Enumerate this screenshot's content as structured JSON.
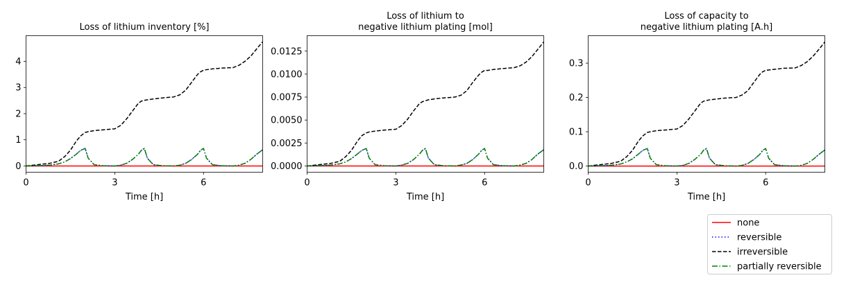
{
  "chart_data": [
    {
      "type": "line",
      "title": [
        "Loss of lithium inventory [%]"
      ],
      "xlabel": "Time [h]",
      "ylabel": "",
      "xlim": [
        0,
        8
      ],
      "ylim": [
        -0.24,
        4.98
      ],
      "xticks": [
        0,
        3,
        6
      ],
      "xtick_labels": [
        "0",
        "3",
        "6"
      ],
      "yticks": [
        0,
        1,
        2,
        3,
        4
      ],
      "ytick_labels": [
        "0",
        "1",
        "2",
        "3",
        "4"
      ],
      "x": [
        0,
        0.4,
        0.8,
        1.1,
        1.3,
        1.5,
        1.7,
        1.85,
        2.0,
        2.1,
        2.3,
        2.6,
        3.0,
        3.2,
        3.4,
        3.6,
        3.8,
        3.9,
        4.0,
        4.1,
        4.3,
        4.6,
        5.0,
        5.2,
        5.4,
        5.6,
        5.8,
        5.9,
        6.0,
        6.1,
        6.3,
        6.6,
        7.0,
        7.2,
        7.4,
        7.6,
        7.8,
        8.0
      ],
      "series": [
        {
          "name": "none",
          "values": [
            0,
            0,
            0,
            0,
            0,
            0,
            0,
            0,
            0,
            0,
            0,
            0,
            0,
            0,
            0,
            0,
            0,
            0,
            0,
            0,
            0,
            0,
            0,
            0,
            0,
            0,
            0,
            0,
            0,
            0,
            0,
            0,
            0,
            0,
            0,
            0,
            0,
            0
          ]
        },
        {
          "name": "reversible",
          "values": [
            0,
            0.01,
            0.03,
            0.08,
            0.15,
            0.28,
            0.45,
            0.6,
            0.67,
            0.3,
            0.05,
            0.01,
            0,
            0.03,
            0.1,
            0.25,
            0.45,
            0.6,
            0.67,
            0.3,
            0.05,
            0.01,
            0,
            0.03,
            0.1,
            0.25,
            0.45,
            0.6,
            0.67,
            0.3,
            0.05,
            0.01,
            0,
            0.03,
            0.1,
            0.25,
            0.45,
            0.62
          ]
        },
        {
          "name": "irreversible",
          "values": [
            0,
            0.05,
            0.1,
            0.18,
            0.35,
            0.6,
            0.95,
            1.15,
            1.28,
            1.31,
            1.35,
            1.38,
            1.42,
            1.55,
            1.8,
            2.1,
            2.4,
            2.48,
            2.51,
            2.53,
            2.56,
            2.6,
            2.64,
            2.72,
            2.9,
            3.2,
            3.5,
            3.6,
            3.66,
            3.68,
            3.71,
            3.74,
            3.76,
            3.85,
            4.0,
            4.2,
            4.48,
            4.75
          ]
        },
        {
          "name": "partially reversible",
          "values": [
            0,
            0.01,
            0.03,
            0.08,
            0.15,
            0.28,
            0.45,
            0.6,
            0.67,
            0.3,
            0.05,
            0.01,
            0,
            0.03,
            0.1,
            0.25,
            0.45,
            0.6,
            0.67,
            0.3,
            0.05,
            0.01,
            0,
            0.03,
            0.1,
            0.25,
            0.45,
            0.6,
            0.67,
            0.3,
            0.05,
            0.01,
            0,
            0.03,
            0.1,
            0.25,
            0.45,
            0.62
          ]
        }
      ]
    },
    {
      "type": "line",
      "title": [
        "Loss of lithium to",
        "negative lithium plating [mol]"
      ],
      "xlabel": "Time [h]",
      "ylabel": "",
      "xlim": [
        0,
        8
      ],
      "ylim": [
        -0.00068,
        0.01418
      ],
      "xticks": [
        0,
        3,
        6
      ],
      "xtick_labels": [
        "0",
        "3",
        "6"
      ],
      "yticks": [
        0,
        0.0025,
        0.005,
        0.0075,
        0.01,
        0.0125
      ],
      "ytick_labels": [
        "0.0000",
        "0.0025",
        "0.0050",
        "0.0075",
        "0.0100",
        "0.0125"
      ],
      "x": [
        0,
        0.4,
        0.8,
        1.1,
        1.3,
        1.5,
        1.7,
        1.85,
        2.0,
        2.1,
        2.3,
        2.6,
        3.0,
        3.2,
        3.4,
        3.6,
        3.8,
        3.9,
        4.0,
        4.1,
        4.3,
        4.6,
        5.0,
        5.2,
        5.4,
        5.6,
        5.8,
        5.9,
        6.0,
        6.1,
        6.3,
        6.6,
        7.0,
        7.2,
        7.4,
        7.6,
        7.8,
        8.0
      ],
      "series": [
        {
          "name": "none",
          "values": [
            0,
            0,
            0,
            0,
            0,
            0,
            0,
            0,
            0,
            0,
            0,
            0,
            0,
            0,
            0,
            0,
            0,
            0,
            0,
            0,
            0,
            0,
            0,
            0,
            0,
            0,
            0,
            0,
            0,
            0,
            0,
            0,
            0,
            0,
            0,
            0,
            0,
            0
          ]
        },
        {
          "name": "reversible",
          "values": [
            0,
            3e-05,
            0.0001,
            0.00023,
            0.00043,
            0.0008,
            0.0013,
            0.0017,
            0.0019,
            0.00085,
            0.00014,
            3e-05,
            0,
            0.0001,
            0.00028,
            0.0007,
            0.0013,
            0.0017,
            0.0019,
            0.00085,
            0.00014,
            3e-05,
            0,
            0.0001,
            0.00028,
            0.0007,
            0.0013,
            0.0017,
            0.0019,
            0.00085,
            0.00014,
            3e-05,
            0,
            0.0001,
            0.00028,
            0.0007,
            0.0013,
            0.00176
          ]
        },
        {
          "name": "irreversible",
          "values": [
            0,
            0.00014,
            0.00028,
            0.0005,
            0.001,
            0.0017,
            0.0027,
            0.0033,
            0.0036,
            0.0037,
            0.0038,
            0.0039,
            0.004,
            0.0044,
            0.0051,
            0.006,
            0.0068,
            0.007,
            0.0071,
            0.0072,
            0.0073,
            0.0074,
            0.0075,
            0.0077,
            0.0082,
            0.0091,
            0.0099,
            0.0102,
            0.0104,
            0.0104,
            0.0105,
            0.0106,
            0.0107,
            0.0109,
            0.0113,
            0.0119,
            0.0127,
            0.0135
          ]
        },
        {
          "name": "partially reversible",
          "values": [
            0,
            3e-05,
            0.0001,
            0.00023,
            0.00043,
            0.0008,
            0.0013,
            0.0017,
            0.0019,
            0.00085,
            0.00014,
            3e-05,
            0,
            0.0001,
            0.00028,
            0.0007,
            0.0013,
            0.0017,
            0.0019,
            0.00085,
            0.00014,
            3e-05,
            0,
            0.0001,
            0.00028,
            0.0007,
            0.0013,
            0.0017,
            0.0019,
            0.00085,
            0.00014,
            3e-05,
            0,
            0.0001,
            0.00028,
            0.0007,
            0.0013,
            0.00176
          ]
        }
      ]
    },
    {
      "type": "line",
      "title": [
        "Loss of capacity to",
        "negative lithium plating [A.h]"
      ],
      "xlabel": "Time [h]",
      "ylabel": "",
      "xlim": [
        0,
        8
      ],
      "ylim": [
        -0.018,
        0.38
      ],
      "xticks": [
        0,
        3,
        6
      ],
      "xtick_labels": [
        "0",
        "3",
        "6"
      ],
      "yticks": [
        0,
        0.1,
        0.2,
        0.3
      ],
      "ytick_labels": [
        "0.0",
        "0.1",
        "0.2",
        "0.3"
      ],
      "x": [
        0,
        0.4,
        0.8,
        1.1,
        1.3,
        1.5,
        1.7,
        1.85,
        2.0,
        2.1,
        2.3,
        2.6,
        3.0,
        3.2,
        3.4,
        3.6,
        3.8,
        3.9,
        4.0,
        4.1,
        4.3,
        4.6,
        5.0,
        5.2,
        5.4,
        5.6,
        5.8,
        5.9,
        6.0,
        6.1,
        6.3,
        6.6,
        7.0,
        7.2,
        7.4,
        7.6,
        7.8,
        8.0
      ],
      "series": [
        {
          "name": "none",
          "values": [
            0,
            0,
            0,
            0,
            0,
            0,
            0,
            0,
            0,
            0,
            0,
            0,
            0,
            0,
            0,
            0,
            0,
            0,
            0,
            0,
            0,
            0,
            0,
            0,
            0,
            0,
            0,
            0,
            0,
            0,
            0,
            0,
            0,
            0,
            0,
            0,
            0,
            0
          ]
        },
        {
          "name": "reversible",
          "values": [
            0,
            0.0008,
            0.0025,
            0.006,
            0.012,
            0.021,
            0.035,
            0.046,
            0.051,
            0.023,
            0.004,
            0.001,
            0,
            0.002,
            0.0075,
            0.019,
            0.034,
            0.046,
            0.051,
            0.023,
            0.004,
            0.001,
            0,
            0.002,
            0.0075,
            0.019,
            0.034,
            0.046,
            0.051,
            0.023,
            0.004,
            0.001,
            0,
            0.002,
            0.0075,
            0.019,
            0.034,
            0.047
          ]
        },
        {
          "name": "irreversible",
          "values": [
            0,
            0.004,
            0.008,
            0.014,
            0.027,
            0.046,
            0.073,
            0.088,
            0.098,
            0.1,
            0.103,
            0.105,
            0.108,
            0.118,
            0.137,
            0.16,
            0.183,
            0.189,
            0.191,
            0.193,
            0.195,
            0.198,
            0.2,
            0.207,
            0.22,
            0.244,
            0.267,
            0.275,
            0.279,
            0.28,
            0.282,
            0.285,
            0.286,
            0.293,
            0.304,
            0.32,
            0.34,
            0.362
          ]
        },
        {
          "name": "partially reversible",
          "values": [
            0,
            0.0008,
            0.0025,
            0.006,
            0.012,
            0.021,
            0.035,
            0.046,
            0.051,
            0.023,
            0.004,
            0.001,
            0,
            0.002,
            0.0075,
            0.019,
            0.034,
            0.046,
            0.051,
            0.023,
            0.004,
            0.001,
            0,
            0.002,
            0.0075,
            0.019,
            0.034,
            0.046,
            0.051,
            0.023,
            0.004,
            0.001,
            0,
            0.002,
            0.0075,
            0.019,
            0.034,
            0.047
          ]
        }
      ]
    }
  ],
  "legend": {
    "placement": "bottom-right",
    "entries": [
      {
        "name": "none",
        "color": "#ff0000",
        "dash": "solid"
      },
      {
        "name": "reversible",
        "color": "#0000ff",
        "dash": "dotted"
      },
      {
        "name": "irreversible",
        "color": "#000000",
        "dash": "dashed"
      },
      {
        "name": "partially reversible",
        "color": "#008000",
        "dash": "dashdot"
      }
    ]
  },
  "series_styles": {
    "none": {
      "color": "#ff0000",
      "dash": "solid"
    },
    "reversible": {
      "color": "#0000ff",
      "dash": "dotted"
    },
    "irreversible": {
      "color": "#000000",
      "dash": "dashed"
    },
    "partially reversible": {
      "color": "#008000",
      "dash": "dashdot"
    }
  }
}
